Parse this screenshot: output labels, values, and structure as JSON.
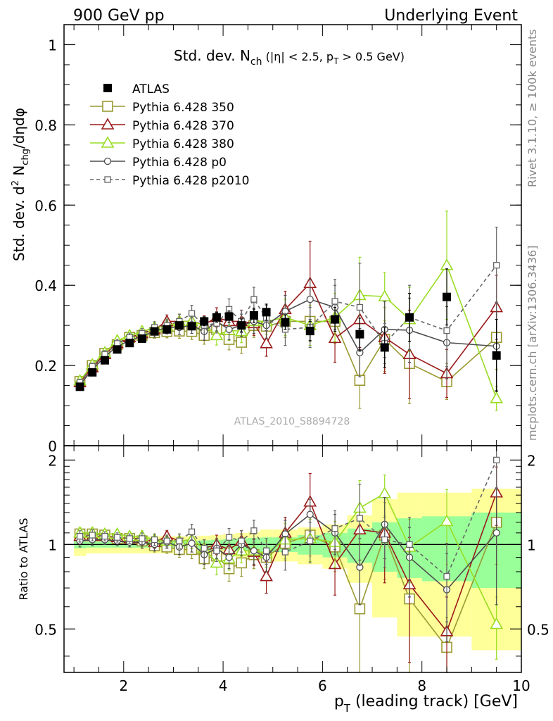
{
  "header": {
    "left": "900 GeV pp",
    "right": "Underlying Event"
  },
  "side_labels": {
    "rivet": "Rivet 3.1.10, ≥ 100k events",
    "mcplots": "mcplots.cern.ch [arXiv:1306.3436]"
  },
  "chart_data": [
    {
      "panel": "main",
      "type": "scatter",
      "title_main": "Std. dev. N",
      "title_sub": "ch",
      "title_rest": " (|η| < 2.5, p",
      "title_sub2": "T",
      "title_end": " > 0.5 GeV)",
      "ylabel": "Std. dev. d² N_chg/dηdφ",
      "ylabel_parts": [
        "Std. dev. d",
        "2",
        " N",
        "chg",
        "/dηdφ"
      ],
      "watermark": "ATLAS_2010_S8894728",
      "xlim": [
        0.8,
        10.0
      ],
      "ylim": [
        0.0,
        1.05
      ],
      "yticks": [
        0,
        0.2,
        0.4,
        0.6,
        0.8,
        1
      ],
      "ytick_labels": [
        "0",
        "0.2",
        "0.4",
        "0.6",
        "0.8",
        "1"
      ],
      "grid": false,
      "legend_position": "top-left",
      "series": [
        {
          "name": "ATLAS",
          "kind": "data",
          "color": "#000000",
          "x": [
            1.12,
            1.37,
            1.62,
            1.87,
            2.12,
            2.37,
            2.62,
            2.87,
            3.12,
            3.37,
            3.62,
            3.87,
            4.12,
            4.37,
            4.62,
            4.87,
            5.25,
            5.75,
            6.25,
            6.75,
            7.25,
            7.75,
            8.5,
            9.5
          ],
          "y": [
            0.147,
            0.183,
            0.213,
            0.24,
            0.256,
            0.267,
            0.285,
            0.29,
            0.3,
            0.298,
            0.31,
            0.32,
            0.322,
            0.3,
            0.325,
            0.333,
            0.308,
            0.286,
            0.315,
            0.278,
            0.245,
            0.32,
            0.371,
            0.225
          ],
          "err": [
            0.004,
            0.004,
            0.004,
            0.004,
            0.005,
            0.005,
            0.006,
            0.007,
            0.008,
            0.009,
            0.011,
            0.012,
            0.014,
            0.016,
            0.018,
            0.02,
            0.018,
            0.024,
            0.03,
            0.04,
            0.05,
            0.06,
            0.07,
            0.09
          ]
        },
        {
          "name": "Pythia 6.428 350",
          "kind": "mc",
          "color": "#999932",
          "marker": "square-open",
          "x": [
            1.12,
            1.37,
            1.62,
            1.87,
            2.12,
            2.37,
            2.62,
            2.87,
            3.12,
            3.37,
            3.62,
            3.87,
            4.12,
            4.37,
            4.62,
            4.87,
            5.25,
            5.75,
            6.25,
            6.75,
            7.25,
            7.75,
            8.5,
            9.5
          ],
          "y": [
            0.16,
            0.2,
            0.23,
            0.252,
            0.27,
            0.275,
            0.282,
            0.285,
            0.286,
            0.285,
            0.275,
            0.29,
            0.265,
            0.258,
            0.3,
            0.298,
            0.31,
            0.31,
            0.31,
            0.163,
            0.265,
            0.205,
            0.16,
            0.27
          ],
          "err": [
            0.008,
            0.008,
            0.008,
            0.01,
            0.01,
            0.012,
            0.014,
            0.016,
            0.018,
            0.02,
            0.022,
            0.024,
            0.026,
            0.028,
            0.03,
            0.032,
            0.04,
            0.05,
            0.055,
            0.07,
            0.08,
            0.1,
            0.045,
            0.08
          ]
        },
        {
          "name": "Pythia 6.428 370",
          "kind": "mc",
          "color": "#991a1a",
          "marker": "triangle-open",
          "x": [
            1.12,
            1.37,
            1.62,
            1.87,
            2.12,
            2.37,
            2.62,
            2.87,
            3.12,
            3.37,
            3.62,
            3.87,
            4.12,
            4.37,
            4.62,
            4.87,
            5.25,
            5.75,
            6.25,
            6.75,
            7.25,
            7.75,
            8.5,
            9.5
          ],
          "y": [
            0.158,
            0.195,
            0.228,
            0.255,
            0.27,
            0.28,
            0.29,
            0.31,
            0.31,
            0.31,
            0.302,
            0.32,
            0.31,
            0.31,
            0.305,
            0.255,
            0.34,
            0.405,
            0.268,
            0.315,
            0.27,
            0.228,
            0.18,
            0.345
          ],
          "err": [
            0.008,
            0.008,
            0.009,
            0.01,
            0.011,
            0.012,
            0.014,
            0.016,
            0.018,
            0.02,
            0.022,
            0.024,
            0.026,
            0.028,
            0.03,
            0.032,
            0.045,
            0.105,
            0.06,
            0.07,
            0.09,
            0.11,
            0.06,
            0.08
          ]
        },
        {
          "name": "Pythia 6.428 380",
          "kind": "mc",
          "color": "#99dd22",
          "marker": "triangle-open",
          "x": [
            1.12,
            1.37,
            1.62,
            1.87,
            2.12,
            2.37,
            2.62,
            2.87,
            3.12,
            3.37,
            3.62,
            3.87,
            4.12,
            4.37,
            4.62,
            4.87,
            5.25,
            5.75,
            6.25,
            6.75,
            7.25,
            7.75,
            8.5,
            9.5
          ],
          "y": [
            0.162,
            0.202,
            0.232,
            0.262,
            0.275,
            0.285,
            0.295,
            0.298,
            0.31,
            0.31,
            0.3,
            0.275,
            0.288,
            0.285,
            0.31,
            0.31,
            0.32,
            0.3,
            0.32,
            0.375,
            0.372,
            0.315,
            0.45,
            0.118
          ],
          "err": [
            0.008,
            0.008,
            0.009,
            0.01,
            0.011,
            0.012,
            0.014,
            0.016,
            0.018,
            0.02,
            0.022,
            0.024,
            0.026,
            0.028,
            0.03,
            0.032,
            0.045,
            0.05,
            0.06,
            0.095,
            0.06,
            0.08,
            0.135,
            0.03
          ]
        },
        {
          "name": "Pythia 6.428 p0",
          "kind": "mc",
          "color": "#4d4d4d",
          "marker": "circle-open",
          "x": [
            1.12,
            1.37,
            1.62,
            1.87,
            2.12,
            2.37,
            2.62,
            2.87,
            3.12,
            3.37,
            3.62,
            3.87,
            4.12,
            4.37,
            4.62,
            4.87,
            5.25,
            5.75,
            6.25,
            6.75,
            7.25,
            7.75,
            8.5,
            9.5
          ],
          "y": [
            0.152,
            0.19,
            0.222,
            0.248,
            0.262,
            0.273,
            0.285,
            0.295,
            0.295,
            0.3,
            0.285,
            0.31,
            0.29,
            0.3,
            0.31,
            0.3,
            0.335,
            0.365,
            0.345,
            0.232,
            0.29,
            0.288,
            0.257,
            0.248
          ],
          "err": [
            0.008,
            0.008,
            0.009,
            0.01,
            0.011,
            0.012,
            0.014,
            0.016,
            0.018,
            0.02,
            0.022,
            0.024,
            0.026,
            0.028,
            0.03,
            0.032,
            0.04,
            0.05,
            0.055,
            0.06,
            0.07,
            0.08,
            0.09,
            0.11
          ]
        },
        {
          "name": "Pythia 6.428 p2010",
          "kind": "mc",
          "color": "#666666",
          "marker": "square-open-small",
          "dashed": true,
          "x": [
            1.12,
            1.37,
            1.62,
            1.87,
            2.12,
            2.37,
            2.62,
            2.87,
            3.12,
            3.37,
            3.62,
            3.87,
            4.12,
            4.37,
            4.62,
            4.87,
            5.25,
            5.75,
            6.25,
            6.75,
            7.25,
            7.75,
            8.5,
            9.5
          ],
          "y": [
            0.158,
            0.198,
            0.228,
            0.255,
            0.27,
            0.28,
            0.295,
            0.3,
            0.31,
            0.33,
            0.3,
            0.305,
            0.34,
            0.31,
            0.365,
            0.318,
            0.29,
            0.295,
            0.36,
            0.345,
            0.255,
            0.32,
            0.287,
            0.45
          ],
          "err": [
            0.008,
            0.008,
            0.009,
            0.01,
            0.011,
            0.012,
            0.014,
            0.016,
            0.018,
            0.02,
            0.022,
            0.024,
            0.026,
            0.028,
            0.03,
            0.032,
            0.04,
            0.05,
            0.055,
            0.11,
            0.05,
            0.08,
            0.09,
            0.095
          ]
        }
      ]
    },
    {
      "panel": "ratio",
      "type": "scatter",
      "ylabel": "Ratio to ATLAS",
      "xlabel": "p_T (leading track) [GeV]",
      "xlabel_parts": [
        "p",
        "T",
        " (leading track) [GeV]"
      ],
      "xlim": [
        0.8,
        10.0
      ],
      "ylim": [
        0.35,
        2.25
      ],
      "xticks": [
        2,
        4,
        6,
        8,
        10
      ],
      "xtick_labels": [
        "2",
        "4",
        "6",
        "8",
        "10"
      ],
      "yticks": [
        0.5,
        1,
        2
      ],
      "ytick_labels": [
        "0.5",
        "1",
        "2"
      ],
      "reference_line": 1,
      "bands": {
        "edges": [
          1.0,
          1.25,
          1.5,
          1.75,
          2.0,
          2.25,
          2.5,
          2.75,
          3.0,
          3.25,
          3.5,
          3.75,
          4.0,
          4.25,
          4.5,
          4.75,
          5.0,
          5.5,
          6.0,
          6.5,
          7.0,
          7.5,
          8.0,
          9.0,
          10.0
        ],
        "stat_err": [
          0.03,
          0.025,
          0.025,
          0.025,
          0.025,
          0.025,
          0.025,
          0.025,
          0.03,
          0.03,
          0.035,
          0.04,
          0.045,
          0.05,
          0.055,
          0.06,
          0.06,
          0.08,
          0.1,
          0.14,
          0.2,
          0.24,
          0.26,
          0.3
        ],
        "total_err": [
          0.09,
          0.07,
          0.07,
          0.07,
          0.07,
          0.07,
          0.07,
          0.07,
          0.07,
          0.07,
          0.075,
          0.08,
          0.09,
          0.1,
          0.11,
          0.13,
          0.13,
          0.15,
          0.18,
          0.27,
          0.45,
          0.53,
          0.53,
          0.58
        ],
        "stat_color": "#99ff99",
        "total_color": "#ffff99"
      },
      "series": [
        {
          "name": "Pythia 6.428 350",
          "color": "#999932",
          "marker": "square-open",
          "x": [
            1.12,
            1.37,
            1.62,
            1.87,
            2.12,
            2.37,
            2.62,
            2.87,
            3.12,
            3.37,
            3.62,
            3.87,
            4.12,
            4.37,
            4.62,
            4.87,
            5.25,
            5.75,
            6.25,
            6.75,
            7.25,
            7.75,
            8.5,
            9.5
          ],
          "y": [
            1.09,
            1.09,
            1.08,
            1.05,
            1.05,
            1.03,
            0.99,
            0.98,
            0.96,
            0.96,
            0.89,
            0.91,
            0.82,
            0.86,
            0.92,
            0.9,
            1.01,
            1.08,
            0.98,
            0.59,
            1.08,
            0.64,
            0.43,
            1.2
          ],
          "err": [
            0.05,
            0.05,
            0.04,
            0.04,
            0.04,
            0.05,
            0.05,
            0.05,
            0.06,
            0.07,
            0.07,
            0.08,
            0.08,
            0.09,
            0.1,
            0.1,
            0.13,
            0.17,
            0.18,
            0.25,
            0.33,
            0.3,
            0.12,
            0.35
          ]
        },
        {
          "name": "Pythia 6.428 370",
          "color": "#991a1a",
          "marker": "triangle-open",
          "x": [
            1.12,
            1.37,
            1.62,
            1.87,
            2.12,
            2.37,
            2.62,
            2.87,
            3.12,
            3.37,
            3.62,
            3.87,
            4.12,
            4.37,
            4.62,
            4.87,
            5.25,
            5.75,
            6.25,
            6.75,
            7.25,
            7.75,
            8.5,
            9.5
          ],
          "y": [
            1.07,
            1.07,
            1.07,
            1.06,
            1.05,
            1.05,
            1.02,
            1.07,
            1.03,
            1.04,
            0.97,
            1.0,
            0.96,
            1.03,
            0.94,
            0.77,
            1.1,
            1.42,
            0.85,
            1.13,
            1.1,
            0.72,
            0.49,
            1.53
          ],
          "err": [
            0.05,
            0.05,
            0.04,
            0.04,
            0.04,
            0.05,
            0.05,
            0.05,
            0.06,
            0.07,
            0.07,
            0.08,
            0.08,
            0.09,
            0.1,
            0.1,
            0.15,
            0.37,
            0.19,
            0.25,
            0.37,
            0.34,
            0.16,
            0.36
          ]
        },
        {
          "name": "Pythia 6.428 380",
          "color": "#99dd22",
          "marker": "triangle-open",
          "x": [
            1.12,
            1.37,
            1.62,
            1.87,
            2.12,
            2.37,
            2.62,
            2.87,
            3.12,
            3.37,
            3.62,
            3.87,
            4.12,
            4.37,
            4.62,
            4.87,
            5.25,
            5.75,
            6.25,
            6.75,
            7.25,
            7.75,
            8.5,
            9.5
          ],
          "y": [
            1.1,
            1.1,
            1.09,
            1.09,
            1.07,
            1.07,
            1.04,
            1.03,
            1.03,
            1.04,
            0.97,
            0.86,
            0.89,
            0.95,
            0.95,
            0.93,
            1.04,
            1.05,
            1.02,
            1.35,
            1.52,
            0.98,
            1.21,
            0.52
          ],
          "err": [
            0.05,
            0.05,
            0.04,
            0.04,
            0.04,
            0.05,
            0.05,
            0.05,
            0.06,
            0.07,
            0.07,
            0.08,
            0.08,
            0.09,
            0.1,
            0.1,
            0.15,
            0.18,
            0.19,
            0.34,
            0.25,
            0.25,
            0.36,
            0.13
          ]
        },
        {
          "name": "Pythia 6.428 p0",
          "color": "#4d4d4d",
          "marker": "circle-open",
          "x": [
            1.12,
            1.37,
            1.62,
            1.87,
            2.12,
            2.37,
            2.62,
            2.87,
            3.12,
            3.37,
            3.62,
            3.87,
            4.12,
            4.37,
            4.62,
            4.87,
            5.25,
            5.75,
            6.25,
            6.75,
            7.25,
            7.75,
            8.5,
            9.5
          ],
          "y": [
            1.03,
            1.04,
            1.04,
            1.03,
            1.02,
            1.02,
            1.0,
            1.02,
            0.98,
            1.01,
            0.92,
            0.97,
            0.9,
            1.0,
            0.95,
            0.9,
            1.09,
            1.28,
            1.1,
            0.83,
            1.18,
            0.9,
            0.69,
            1.1
          ],
          "err": [
            0.05,
            0.05,
            0.04,
            0.04,
            0.04,
            0.05,
            0.05,
            0.05,
            0.06,
            0.07,
            0.07,
            0.08,
            0.08,
            0.09,
            0.1,
            0.1,
            0.13,
            0.17,
            0.18,
            0.22,
            0.29,
            0.25,
            0.24,
            0.49
          ]
        },
        {
          "name": "Pythia 6.428 p2010",
          "color": "#666666",
          "marker": "square-open-small",
          "dashed": true,
          "x": [
            1.12,
            1.37,
            1.62,
            1.87,
            2.12,
            2.37,
            2.62,
            2.87,
            3.12,
            3.37,
            3.62,
            3.87,
            4.12,
            4.37,
            4.62,
            4.87,
            5.25,
            5.75,
            6.25,
            6.75,
            7.25,
            7.75,
            8.5,
            9.5
          ],
          "y": [
            1.07,
            1.08,
            1.07,
            1.06,
            1.05,
            1.05,
            1.04,
            1.03,
            1.03,
            1.11,
            0.97,
            0.95,
            1.06,
            1.03,
            1.12,
            0.95,
            0.94,
            1.03,
            1.14,
            1.24,
            1.04,
            1.0,
            0.77,
            2.0
          ],
          "err": [
            0.05,
            0.05,
            0.04,
            0.04,
            0.04,
            0.05,
            0.05,
            0.05,
            0.06,
            0.07,
            0.07,
            0.08,
            0.08,
            0.09,
            0.1,
            0.1,
            0.13,
            0.17,
            0.18,
            0.4,
            0.21,
            0.25,
            0.24,
            0.42
          ]
        }
      ]
    }
  ]
}
